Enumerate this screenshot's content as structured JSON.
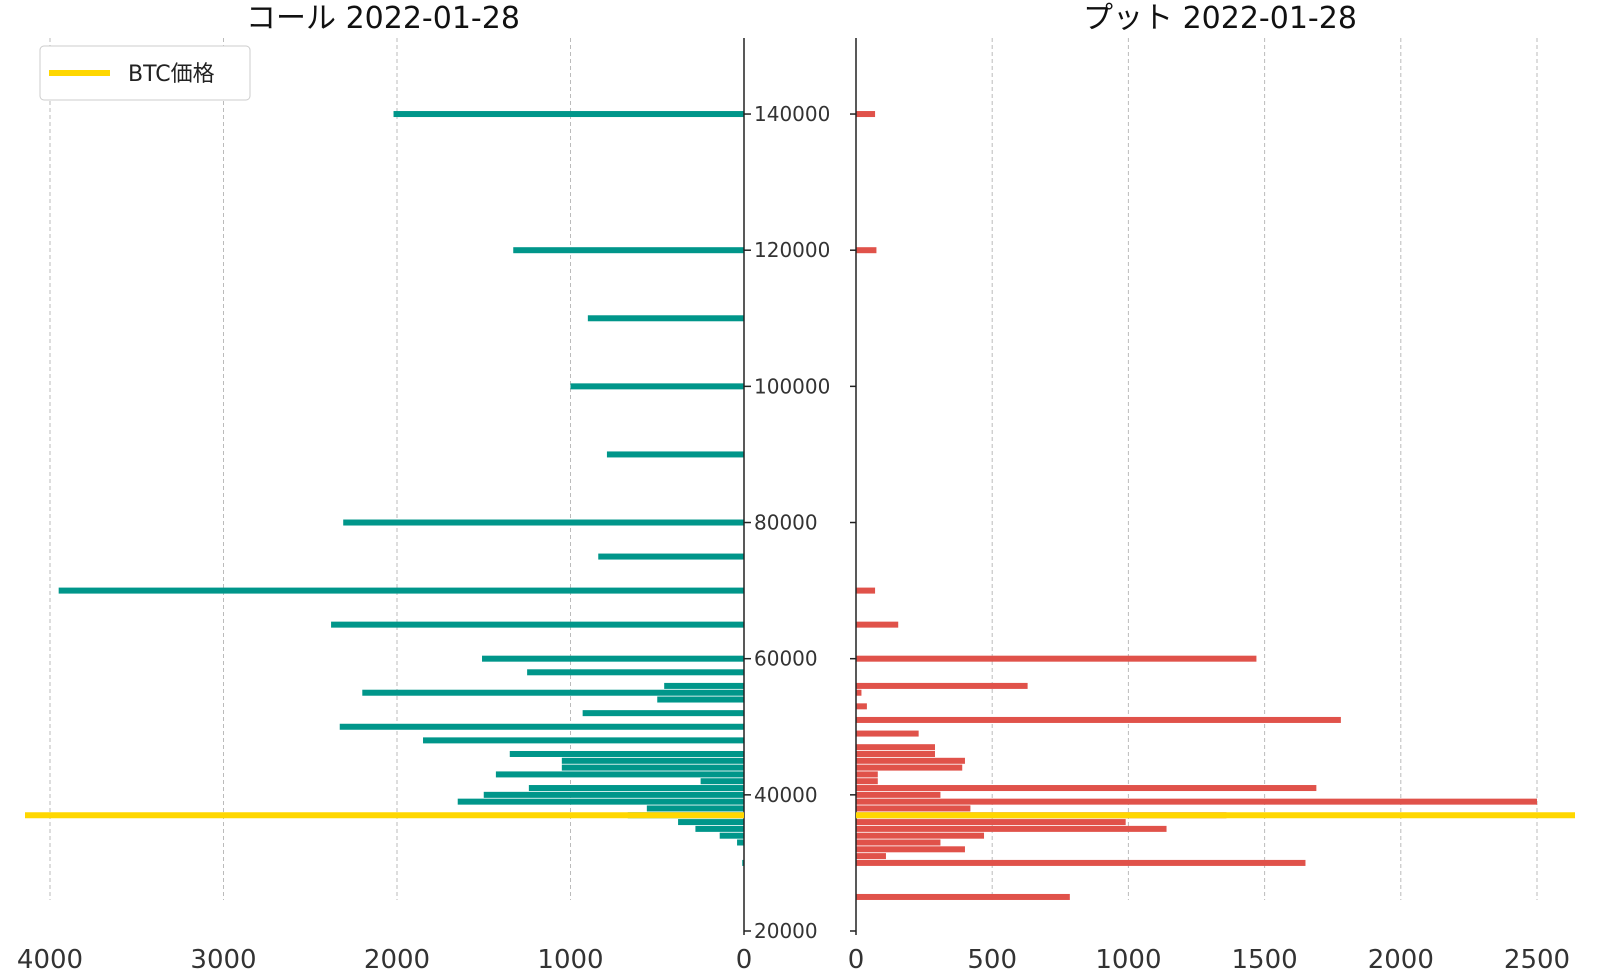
{
  "chart_data": [
    {
      "type": "bar",
      "orientation": "horizontal",
      "x_direction": "reversed",
      "title": "コール 2022-01-28",
      "color": "#00968a",
      "xlim": [
        0,
        4000
      ],
      "x_ticks": [
        4000,
        3000,
        2000,
        1000,
        0
      ],
      "x_tick_labels": [
        "4000",
        "3000",
        "2000",
        "1000",
        "0"
      ],
      "ylim": [
        20000,
        145000
      ],
      "y_ticks": [
        20000,
        40000,
        60000,
        80000,
        100000,
        120000,
        140000
      ],
      "y_tick_labels": [
        "20000",
        "40000",
        "60000",
        "80000",
        "100000",
        "120000",
        "140000"
      ],
      "bars": [
        {
          "strike": 140000,
          "value": 2020
        },
        {
          "strike": 120000,
          "value": 1330
        },
        {
          "strike": 110000,
          "value": 900
        },
        {
          "strike": 100000,
          "value": 1000
        },
        {
          "strike": 90000,
          "value": 790
        },
        {
          "strike": 80000,
          "value": 2310
        },
        {
          "strike": 75000,
          "value": 840
        },
        {
          "strike": 70000,
          "value": 3950
        },
        {
          "strike": 65000,
          "value": 2380
        },
        {
          "strike": 60000,
          "value": 1510
        },
        {
          "strike": 58000,
          "value": 1250
        },
        {
          "strike": 56000,
          "value": 460
        },
        {
          "strike": 55000,
          "value": 2200
        },
        {
          "strike": 54000,
          "value": 500
        },
        {
          "strike": 52000,
          "value": 930
        },
        {
          "strike": 50000,
          "value": 2330
        },
        {
          "strike": 48000,
          "value": 1850
        },
        {
          "strike": 46000,
          "value": 1350
        },
        {
          "strike": 45000,
          "value": 1050
        },
        {
          "strike": 44000,
          "value": 1050
        },
        {
          "strike": 43000,
          "value": 1430
        },
        {
          "strike": 42000,
          "value": 250
        },
        {
          "strike": 41000,
          "value": 1240
        },
        {
          "strike": 40000,
          "value": 1500
        },
        {
          "strike": 39000,
          "value": 1650
        },
        {
          "strike": 38000,
          "value": 560
        },
        {
          "strike": 37000,
          "value": 670
        },
        {
          "strike": 36000,
          "value": 380
        },
        {
          "strike": 35000,
          "value": 280
        },
        {
          "strike": 34000,
          "value": 140
        },
        {
          "strike": 33000,
          "value": 40
        },
        {
          "strike": 30000,
          "value": 10
        }
      ],
      "btc_price": 37000
    },
    {
      "type": "bar",
      "orientation": "horizontal",
      "title": "プット 2022-01-28",
      "color": "#e0524a",
      "xlim": [
        0,
        2620
      ],
      "x_ticks": [
        0,
        500,
        1000,
        1500,
        2000,
        2500
      ],
      "x_tick_labels": [
        "0",
        "500",
        "1000",
        "1500",
        "2000",
        "2500"
      ],
      "ylim": [
        20000,
        145000
      ],
      "bars": [
        {
          "strike": 140000,
          "value": 70
        },
        {
          "strike": 120000,
          "value": 75
        },
        {
          "strike": 70000,
          "value": 70
        },
        {
          "strike": 65000,
          "value": 155
        },
        {
          "strike": 60000,
          "value": 1470
        },
        {
          "strike": 56000,
          "value": 630
        },
        {
          "strike": 55000,
          "value": 20
        },
        {
          "strike": 53000,
          "value": 40
        },
        {
          "strike": 51000,
          "value": 1780
        },
        {
          "strike": 49000,
          "value": 230
        },
        {
          "strike": 47000,
          "value": 290
        },
        {
          "strike": 46000,
          "value": 290
        },
        {
          "strike": 45000,
          "value": 400
        },
        {
          "strike": 44000,
          "value": 390
        },
        {
          "strike": 43000,
          "value": 80
        },
        {
          "strike": 42000,
          "value": 80
        },
        {
          "strike": 41000,
          "value": 1690
        },
        {
          "strike": 40000,
          "value": 310
        },
        {
          "strike": 39000,
          "value": 2500
        },
        {
          "strike": 38000,
          "value": 420
        },
        {
          "strike": 37000,
          "value": 1360
        },
        {
          "strike": 36000,
          "value": 990
        },
        {
          "strike": 35000,
          "value": 1140
        },
        {
          "strike": 34000,
          "value": 470
        },
        {
          "strike": 33000,
          "value": 310
        },
        {
          "strike": 32000,
          "value": 400
        },
        {
          "strike": 31000,
          "value": 110
        },
        {
          "strike": 30000,
          "value": 1650
        },
        {
          "strike": 25000,
          "value": 785
        }
      ],
      "btc_price": 37000
    }
  ],
  "legend": {
    "label": "BTC価格",
    "color": "#ffd700",
    "placement": "top-left"
  }
}
